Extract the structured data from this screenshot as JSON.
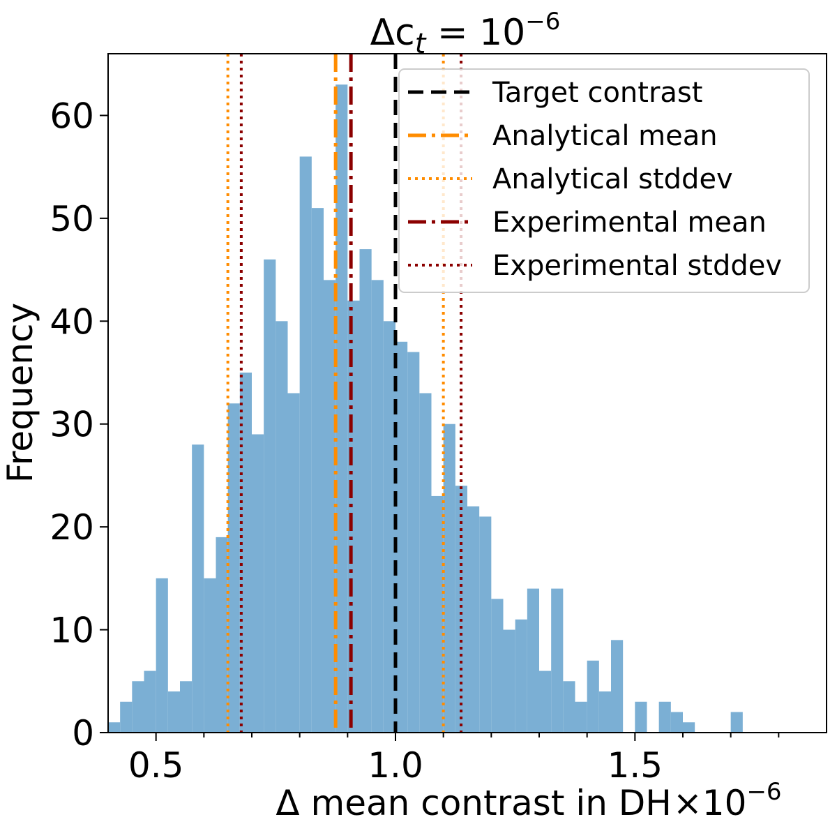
{
  "chart_data": {
    "type": "bar",
    "subtype": "histogram",
    "title_main": "Δc",
    "title_sub": "t",
    "title_eq": " = 10",
    "title_exp": "−6",
    "xlabel": "Δ mean contrast in DH",
    "xlabel_multiplier": "×10",
    "xlabel_multiplier_exp": "−6",
    "ylabel": "Frequency",
    "xlim": [
      0.4,
      1.9
    ],
    "ylim": [
      0,
      66
    ],
    "xticks": [
      0.5,
      1.0,
      1.5
    ],
    "xtick_labels": [
      "0.5",
      "1.0",
      "1.5"
    ],
    "minor_xticks": [
      0.6,
      0.7,
      0.8,
      0.9,
      1.1,
      1.2,
      1.3,
      1.4,
      1.6,
      1.7,
      1.8
    ],
    "yticks": [
      0,
      10,
      20,
      30,
      40,
      50,
      60
    ],
    "ytick_labels": [
      "0",
      "10",
      "20",
      "30",
      "40",
      "50",
      "60"
    ],
    "bin_start": 0.4,
    "bin_width": 0.025,
    "counts": [
      1,
      3,
      5,
      6,
      15,
      4,
      5,
      28,
      15,
      19,
      32,
      35,
      29,
      46,
      40,
      33,
      56,
      51,
      44,
      63,
      42,
      47,
      44,
      40,
      38,
      37,
      33,
      23,
      30,
      24,
      22,
      21,
      13,
      10,
      11,
      14,
      6,
      14,
      5,
      3,
      7,
      4,
      9,
      0,
      3,
      0,
      3,
      2,
      1,
      0,
      0,
      0,
      2
    ],
    "bar_color": "#7bafd4",
    "vlines": [
      {
        "name": "Target contrast",
        "x": 1.0,
        "style": "dashed",
        "color": "#000000"
      },
      {
        "name": "Analytical mean",
        "x": 0.875,
        "style": "dashdot",
        "color": "#ff8c00"
      },
      {
        "name": "Analytical stddev",
        "x": [
          0.65,
          1.1
        ],
        "style": "dotted",
        "color": "#ff8c00"
      },
      {
        "name": "Experimental mean",
        "x": 0.907,
        "style": "dashdot",
        "color": "#8b0000"
      },
      {
        "name": "Experimental stddev",
        "x": [
          0.678,
          1.137
        ],
        "style": "dotted",
        "color": "#8b0000"
      }
    ],
    "legend": [
      {
        "label": "Target contrast",
        "style": "dashed",
        "color": "#000000"
      },
      {
        "label": "Analytical mean",
        "style": "dashdot",
        "color": "#ff8c00"
      },
      {
        "label": "Analytical stddev",
        "style": "dotted",
        "color": "#ff8c00"
      },
      {
        "label": "Experimental mean",
        "style": "dashdot",
        "color": "#8b0000"
      },
      {
        "label": "Experimental stddev",
        "style": "dotted",
        "color": "#8b0000"
      }
    ],
    "legend_position": "top-right"
  }
}
